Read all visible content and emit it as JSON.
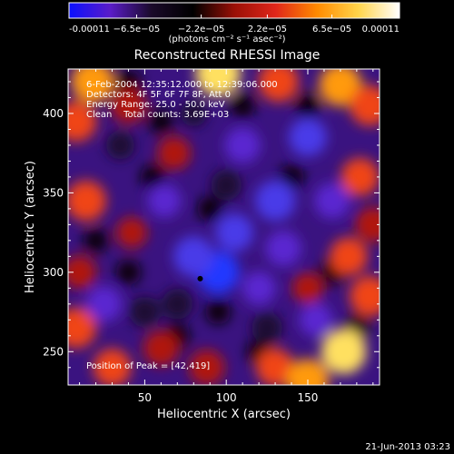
{
  "chart_data": {
    "type": "heatmap",
    "title": "Reconstructed RHESSI Image",
    "xlabel": "Heliocentric X (arcsec)",
    "ylabel": "Heliocentric Y (arcsec)",
    "xlim": [
      3,
      194
    ],
    "ylim": [
      229,
      428
    ],
    "x_ticks": [
      50,
      100,
      150
    ],
    "y_ticks": [
      250,
      300,
      350,
      400
    ],
    "colorbar": {
      "min": -0.00011,
      "max": 0.00011,
      "tick_values": [
        -0.00011,
        -6.5e-05,
        -2.2e-05,
        2.2e-05,
        6.5e-05,
        0.00011
      ],
      "tick_labels": [
        "-0.00011",
        "−6.5e−05",
        "−2.2e−05",
        "2.2e−05",
        "6.5e−05",
        "0.00011"
      ],
      "unit_label": "(photons cm⁻² s⁻¹ asec⁻²)",
      "colors": [
        "#0b10ff",
        "#5a1cc8",
        "#1a0a2a",
        "#000000",
        "#9a1006",
        "#e0261a",
        "#ff8a00",
        "#ffd44a",
        "#ffffff"
      ]
    },
    "annotations": [
      "6-Feb-2004 12:35:12.000 to 12:39:06.000",
      "Detectors: 4F 5F 6F 7F 8F, Att 0",
      "Energy Range: 25.0 - 50.0 keV",
      "Clean    Total counts: 3.69E+03",
      "Position of Peak = [42,419]"
    ],
    "marker": {
      "x": 84,
      "y": 296
    },
    "regions": [
      {
        "x": 18,
        "y": 420,
        "value": 9e-05
      },
      {
        "x": 8,
        "y": 395,
        "value": 8e-05
      },
      {
        "x": 40,
        "y": 405,
        "value": 6e-05
      },
      {
        "x": 95,
        "y": 425,
        "value": 0.0001
      },
      {
        "x": 132,
        "y": 420,
        "value": 8e-05
      },
      {
        "x": 170,
        "y": 418,
        "value": 9e-05
      },
      {
        "x": 188,
        "y": 405,
        "value": 8e-05
      },
      {
        "x": 182,
        "y": 360,
        "value": 7e-05
      },
      {
        "x": 190,
        "y": 330,
        "value": 6e-05
      },
      {
        "x": 175,
        "y": 310,
        "value": 7e-05
      },
      {
        "x": 188,
        "y": 285,
        "value": 8e-05
      },
      {
        "x": 172,
        "y": 250,
        "value": 0.0001
      },
      {
        "x": 130,
        "y": 240,
        "value": 7e-05
      },
      {
        "x": 150,
        "y": 232,
        "value": 9e-05
      },
      {
        "x": 88,
        "y": 240,
        "value": 6e-05
      },
      {
        "x": 60,
        "y": 252,
        "value": 6e-05
      },
      {
        "x": 30,
        "y": 240,
        "value": 7e-05
      },
      {
        "x": 8,
        "y": 265,
        "value": 8e-05
      },
      {
        "x": 10,
        "y": 300,
        "value": 5e-05
      },
      {
        "x": 14,
        "y": 345,
        "value": 8e-05
      },
      {
        "x": 42,
        "y": 325,
        "value": 4e-05
      },
      {
        "x": 68,
        "y": 375,
        "value": 5e-05
      },
      {
        "x": 150,
        "y": 290,
        "value": 4e-05
      },
      {
        "x": 95,
        "y": 300,
        "value": -9e-05
      },
      {
        "x": 80,
        "y": 310,
        "value": -8e-05
      },
      {
        "x": 105,
        "y": 325,
        "value": -7e-05
      },
      {
        "x": 130,
        "y": 345,
        "value": -8e-05
      },
      {
        "x": 150,
        "y": 385,
        "value": -7e-05
      },
      {
        "x": 110,
        "y": 380,
        "value": -6e-05
      },
      {
        "x": 62,
        "y": 345,
        "value": -5e-05
      },
      {
        "x": 120,
        "y": 290,
        "value": -5e-05
      },
      {
        "x": 135,
        "y": 315,
        "value": -6e-05
      },
      {
        "x": 25,
        "y": 280,
        "value": -6e-05
      },
      {
        "x": 50,
        "y": 275,
        "value": -4e-05
      },
      {
        "x": 165,
        "y": 345,
        "value": -6e-05
      },
      {
        "x": 100,
        "y": 355,
        "value": -4e-05
      },
      {
        "x": 155,
        "y": 270,
        "value": -5e-05
      },
      {
        "x": 125,
        "y": 265,
        "value": -4e-05
      },
      {
        "x": 35,
        "y": 380,
        "value": -3e-05
      },
      {
        "x": 80,
        "y": 400,
        "value": -2e-05
      },
      {
        "x": 70,
        "y": 280,
        "value": -4e-05
      }
    ]
  },
  "footer_timestamp": "21-Jun-2013 03:23"
}
